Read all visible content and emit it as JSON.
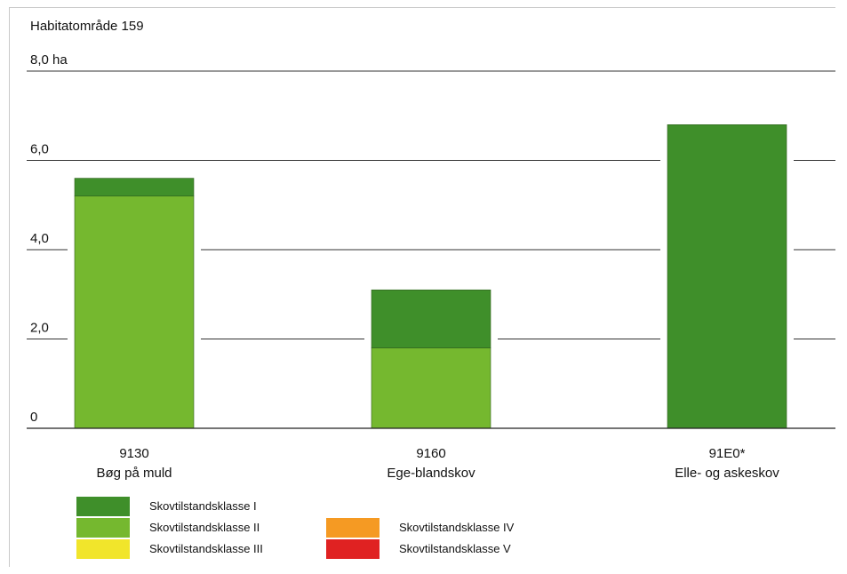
{
  "chart_data": {
    "type": "bar",
    "stacked": true,
    "title": "Habitatområde 159",
    "yunit_label": "8,0 ha",
    "yticks": [
      {
        "value": 0,
        "label": "0"
      },
      {
        "value": 2,
        "label": "2,0"
      },
      {
        "value": 4,
        "label": "4,0"
      },
      {
        "value": 6,
        "label": "6,0"
      },
      {
        "value": 8,
        "label": "8,0 ha"
      }
    ],
    "ylim": [
      0,
      8
    ],
    "grid": true,
    "categories": [
      {
        "code": "9130",
        "name": "Bøg på muld"
      },
      {
        "code": "9160",
        "name": "Ege-blandskov"
      },
      {
        "code": "91E0*",
        "name": "Elle- og askeskov"
      }
    ],
    "series": [
      {
        "name": "Skovtilstandsklasse I",
        "color": "#3f8f2a",
        "values": [
          0.4,
          1.3,
          6.8
        ]
      },
      {
        "name": "Skovtilstandsklasse II",
        "color": "#75b82f",
        "values": [
          5.2,
          1.8,
          0
        ]
      },
      {
        "name": "Skovtilstandsklasse III",
        "color": "#f1e52b",
        "values": [
          0,
          0,
          0
        ]
      },
      {
        "name": "Skovtilstandsklasse IV",
        "color": "#f59a23",
        "values": [
          0,
          0,
          0
        ]
      },
      {
        "name": "Skovtilstandsklasse V",
        "color": "#e02222",
        "values": [
          0,
          0,
          0
        ]
      }
    ],
    "legend_position": "bottom-left"
  }
}
